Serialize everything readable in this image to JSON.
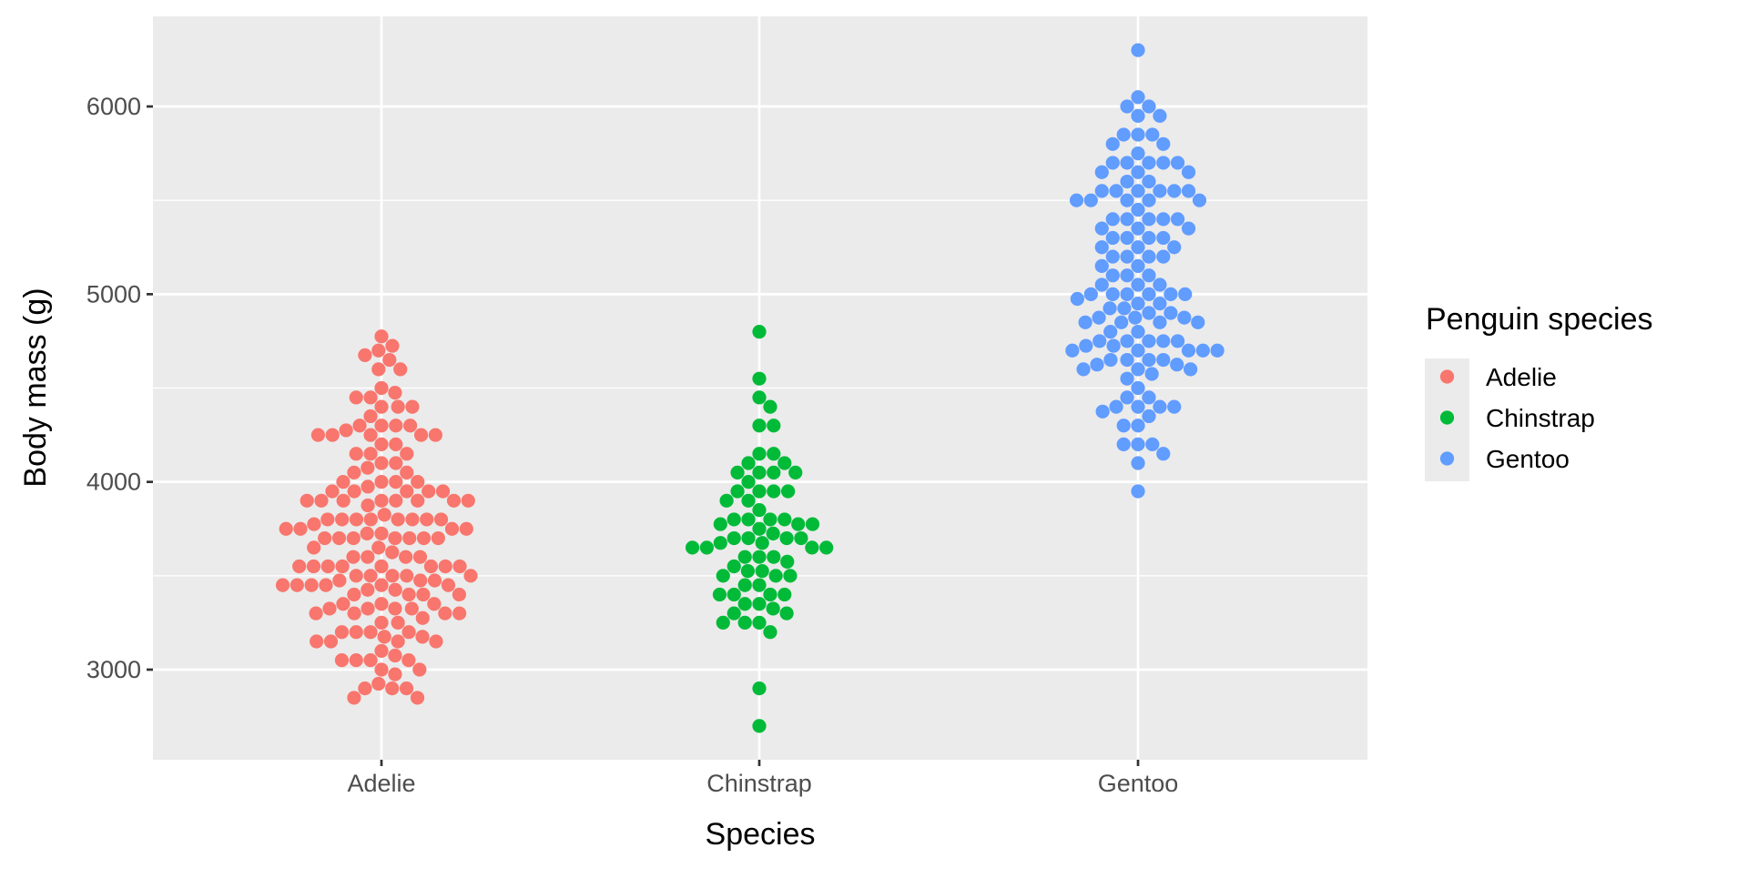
{
  "chart_data": {
    "type": "scatter",
    "subtype": "beeswarm",
    "title": "",
    "xlabel": "Species",
    "ylabel": "Body mass (g)",
    "ylim": [
      2520,
      6480
    ],
    "yticks": [
      3000,
      4000,
      5000,
      6000
    ],
    "yticks_minor": [
      3500,
      4500,
      5500
    ],
    "categories": [
      "Adelie",
      "Chinstrap",
      "Gentoo"
    ],
    "grid": true,
    "legend": {
      "title": "Penguin species",
      "placement": "right",
      "entries": [
        "Adelie",
        "Chinstrap",
        "Gentoo"
      ]
    },
    "colors": {
      "Adelie": "#F8766D",
      "Chinstrap": "#00BA38",
      "Gentoo": "#619CFF"
    },
    "series": [
      {
        "name": "Adelie",
        "values": [
          3750,
          3800,
          3250,
          3450,
          3650,
          3625,
          4675,
          3475,
          4250,
          3300,
          3700,
          3200,
          3800,
          4400,
          3700,
          3450,
          4500,
          3325,
          4200,
          3400,
          3600,
          3800,
          3950,
          3800,
          3800,
          3550,
          3200,
          3150,
          3950,
          3250,
          3900,
          3300,
          3900,
          3325,
          4150,
          3950,
          3550,
          3300,
          4650,
          3150,
          3900,
          3100,
          4400,
          3000,
          4600,
          3425,
          2975,
          3450,
          4150,
          3500,
          4300,
          3450,
          4050,
          2900,
          3700,
          3550,
          3800,
          2850,
          3750,
          3150,
          4400,
          3600,
          4050,
          2850,
          3950,
          3350,
          4100,
          3050,
          4450,
          3600,
          3900,
          3550,
          4150,
          3700,
          4250,
          3700,
          3900,
          3550,
          4000,
          3200,
          4700,
          3800,
          4200,
          3350,
          3550,
          3800,
          3500,
          3950,
          3600,
          3550,
          4300,
          3400,
          4450,
          3300,
          4300,
          3700,
          4350,
          2900,
          4100,
          3725,
          4725,
          3075,
          4250,
          2925,
          3550,
          3750,
          3900,
          3175,
          4775,
          3825,
          4600,
          3200,
          4275,
          3900,
          4075,
          2900,
          3775,
          3350,
          3325,
          3150,
          3500,
          3450,
          3875,
          3050,
          4000,
          3275,
          4300,
          3050,
          4000,
          3325,
          3500,
          3500,
          4475,
          3425,
          3900,
          3175,
          3975,
          3400,
          4250,
          3400,
          3475,
          3050,
          3725,
          3000,
          3650,
          4250,
          3475,
          3450,
          3750,
          3700,
          4000
        ]
      },
      {
        "name": "Chinstrap",
        "values": [
          3500,
          3900,
          3650,
          3525,
          3725,
          3950,
          3250,
          3750,
          4150,
          3700,
          3800,
          3775,
          3700,
          4050,
          3575,
          4050,
          3300,
          3700,
          3450,
          4400,
          3600,
          3400,
          2900,
          3800,
          3300,
          4150,
          3400,
          3800,
          3700,
          4550,
          3200,
          4300,
          3350,
          4100,
          3600,
          3900,
          3850,
          4800,
          3500,
          3950,
          3650,
          3550,
          3500,
          3675,
          4450,
          3400,
          4300,
          3250,
          3675,
          3325,
          3950,
          3600,
          4050,
          3350,
          3450,
          3250,
          4050,
          3800,
          3525,
          3950,
          3650,
          3650,
          4000,
          3400,
          3775,
          4100,
          3775,
          2700
        ]
      },
      {
        "name": "Gentoo",
        "values": [
          4500,
          5700,
          4450,
          5700,
          5400,
          4550,
          4800,
          5200,
          4400,
          5150,
          4650,
          5550,
          4650,
          5850,
          4200,
          5850,
          4150,
          6300,
          4800,
          5350,
          5700,
          5000,
          4400,
          5050,
          5000,
          5100,
          4100,
          5650,
          4600,
          5550,
          5250,
          4700,
          5050,
          6050,
          5150,
          5400,
          4950,
          5250,
          4350,
          5350,
          3950,
          5700,
          4300,
          4750,
          5550,
          4900,
          4200,
          5400,
          5100,
          5300,
          4850,
          5300,
          4400,
          5000,
          4900,
          5050,
          4300,
          5000,
          4450,
          5550,
          4200,
          5300,
          4400,
          5650,
          4700,
          5700,
          4650,
          5800,
          4700,
          5550,
          4750,
          5000,
          5100,
          5200,
          4700,
          5800,
          4600,
          6000,
          4750,
          5950,
          4625,
          5450,
          4725,
          5350,
          4750,
          5600,
          4600,
          5300,
          4875,
          5550,
          4950,
          5400,
          4750,
          5650,
          4850,
          5200,
          4925,
          4875,
          4625,
          5250,
          4850,
          5600,
          4975,
          5500,
          4725,
          5500,
          4700,
          5500,
          4575,
          5500,
          5000,
          5950,
          4650,
          5500,
          4375,
          5850,
          4875,
          6000,
          4925,
          4850,
          5750,
          5200,
          5400
        ]
      }
    ]
  }
}
